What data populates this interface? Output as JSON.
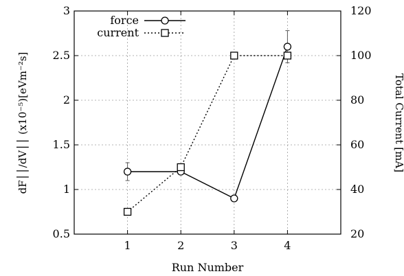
{
  "chart_data": {
    "type": "line",
    "x": [
      1,
      2,
      3,
      4
    ],
    "xlim": [
      0,
      5
    ],
    "xticks": [
      1,
      2,
      3,
      4
    ],
    "ylim_left": [
      0.5,
      3
    ],
    "yticks_left": [
      0.5,
      1,
      1.5,
      2,
      2.5,
      3
    ],
    "ylim_right": [
      20,
      120
    ],
    "yticks_right": [
      20,
      40,
      60,
      80,
      100,
      120
    ],
    "xlabel": "Run Number",
    "ylabel_left": "dF││/dV││ (x10⁻⁵)[eVm⁻²s]",
    "ylabel_right": "Total Current [mA]",
    "grid": true,
    "legend": "top-left",
    "series": [
      {
        "name": "force",
        "axis": "left",
        "marker": "circle",
        "line": "solid",
        "values": [
          1.2,
          1.2,
          0.9,
          2.6
        ],
        "errors": [
          0.1,
          0.03,
          0.02,
          0.18
        ]
      },
      {
        "name": "current",
        "axis": "right",
        "marker": "square",
        "line": "dotted",
        "values": [
          30,
          50,
          100,
          100
        ]
      }
    ]
  }
}
